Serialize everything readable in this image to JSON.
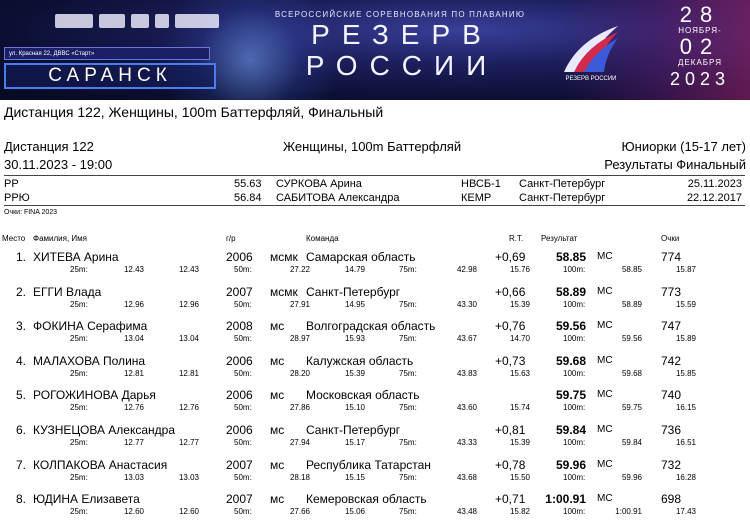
{
  "banner": {
    "address": "ул. Красная 22, ДВВС «Старт»",
    "city": "САРАНСК",
    "subtitle": "ВСЕРОССИЙСКИЕ СОРЕВНОВАНИЯ ПО ПЛАВАНИЮ",
    "title_line1": "РЕЗЕРВ",
    "title_line2": "РОССИИ",
    "emblem_text": "РЕЗЕРВ РОССИИ",
    "date_start": "28",
    "month_start": "НОЯБРЯ-",
    "date_end": "02",
    "month_end": "ДЕКАБРЯ",
    "year": "2023"
  },
  "page_title": "Дистанция 122, Женщины, 100m Баттерфляй, Финальный",
  "header": {
    "distance": "Дистанция 122",
    "event": "Женщины, 100m Баттерфляй",
    "age_group": "Юниорки (15-17 лет)",
    "datetime": "30.11.2023 - 19:00",
    "results_label": "Результаты Финальный"
  },
  "records": [
    {
      "code": "РР",
      "time": "55.63",
      "name": "СУРКОВА Арина",
      "club": "НВСБ-1",
      "city": "Санкт-Петербург",
      "date": "25.11.2023"
    },
    {
      "code": "РРЮ",
      "time": "56.84",
      "name": "САБИТОВА Александра",
      "club": "КЕМР",
      "city": "Санкт-Петербург",
      "date": "22.12.2017"
    }
  ],
  "points_note": "Очки: FINA 2023",
  "columns": {
    "place": "Место",
    "name": "Фамилия, Имя",
    "year": "г/р",
    "team": "Команда",
    "rt": "R.T.",
    "result": "Результат",
    "points": "Очки"
  },
  "results": [
    {
      "place": "1.",
      "name": "ХИТЕВА Арина",
      "year": "2006",
      "rank": "мсмк",
      "team": "Самарская область",
      "rt": "+0,69",
      "time": "58.85",
      "qual": "МС",
      "points": "774",
      "sp25": "12.43",
      "sp25c": "12.43",
      "sp50": "27.22",
      "sp50d": "14.79",
      "sp75": "42.98",
      "sp75d": "15.76",
      "sp100": "58.85",
      "sp100d": "15.87"
    },
    {
      "place": "2.",
      "name": "ЕГГИ Влада",
      "year": "2007",
      "rank": "мсмк",
      "team": "Санкт-Петербург",
      "rt": "+0,66",
      "time": "58.89",
      "qual": "МС",
      "points": "773",
      "sp25": "12.96",
      "sp25c": "12.96",
      "sp50": "27.91",
      "sp50d": "14.95",
      "sp75": "43.30",
      "sp75d": "15.39",
      "sp100": "58.89",
      "sp100d": "15.59"
    },
    {
      "place": "3.",
      "name": "ФОКИНА Серафима",
      "year": "2008",
      "rank": "мс",
      "team": "Волгоградская область",
      "rt": "+0,76",
      "time": "59.56",
      "qual": "МС",
      "points": "747",
      "sp25": "13.04",
      "sp25c": "13.04",
      "sp50": "28.97",
      "sp50d": "15.93",
      "sp75": "43.67",
      "sp75d": "14.70",
      "sp100": "59.56",
      "sp100d": "15.89"
    },
    {
      "place": "4.",
      "name": "МАЛАХОВА Полина",
      "year": "2006",
      "rank": "мс",
      "team": "Калужская область",
      "rt": "+0,73",
      "time": "59.68",
      "qual": "МС",
      "points": "742",
      "sp25": "12.81",
      "sp25c": "12.81",
      "sp50": "28.20",
      "sp50d": "15.39",
      "sp75": "43.83",
      "sp75d": "15.63",
      "sp100": "59.68",
      "sp100d": "15.85"
    },
    {
      "place": "5.",
      "name": "РОГОЖИНОВА Дарья",
      "year": "2006",
      "rank": "мс",
      "team": "Московская область",
      "rt": "",
      "time": "59.75",
      "qual": "МС",
      "points": "740",
      "sp25": "12.76",
      "sp25c": "12.76",
      "sp50": "27.86",
      "sp50d": "15.10",
      "sp75": "43.60",
      "sp75d": "15.74",
      "sp100": "59.75",
      "sp100d": "16.15"
    },
    {
      "place": "6.",
      "name": "КУЗНЕЦОВА Александра",
      "year": "2006",
      "rank": "мс",
      "team": "Санкт-Петербург",
      "rt": "+0,81",
      "time": "59.84",
      "qual": "МС",
      "points": "736",
      "sp25": "12.77",
      "sp25c": "12.77",
      "sp50": "27.94",
      "sp50d": "15.17",
      "sp75": "43.33",
      "sp75d": "15.39",
      "sp100": "59.84",
      "sp100d": "16.51"
    },
    {
      "place": "7.",
      "name": "КОЛПАКОВА Анастасия",
      "year": "2007",
      "rank": "мс",
      "team": "Республика Татарстан",
      "rt": "+0,78",
      "time": "59.96",
      "qual": "МС",
      "points": "732",
      "sp25": "13.03",
      "sp25c": "13.03",
      "sp50": "28.18",
      "sp50d": "15.15",
      "sp75": "43.68",
      "sp75d": "15.50",
      "sp100": "59.96",
      "sp100d": "16.28"
    },
    {
      "place": "8.",
      "name": "ЮДИНА Елизавета",
      "year": "2007",
      "rank": "мс",
      "team": "Кемеровская область",
      "rt": "+0,71",
      "time": "1:00.91",
      "qual": "МС",
      "points": "698",
      "sp25": "12.60",
      "sp25c": "12.60",
      "sp50": "27.66",
      "sp50d": "15.06",
      "sp75": "43.48",
      "sp75d": "15.82",
      "sp100": "1:00.91",
      "sp100d": "17.43"
    }
  ],
  "split_labels": {
    "s25": "25m:",
    "s50": "50m:",
    "s75": "75m:",
    "s100": "100m:"
  }
}
